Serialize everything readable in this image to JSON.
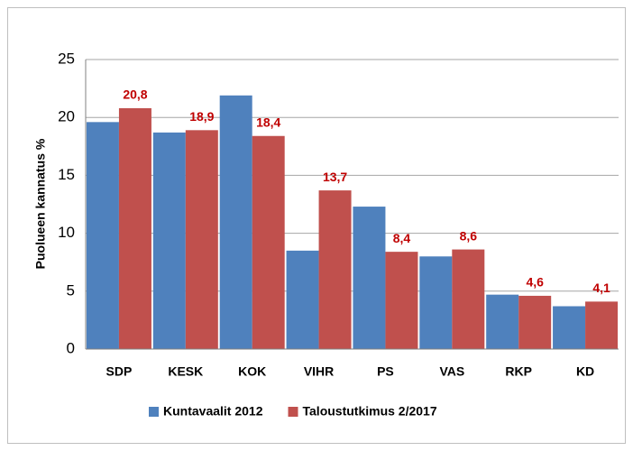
{
  "chart_data": {
    "type": "bar",
    "y_label": "Puolueen kannatus %",
    "categories": [
      "SDP",
      "KESK",
      "KOK",
      "VIHR",
      "PS",
      "VAS",
      "RKP",
      "KD"
    ],
    "series": [
      {
        "name": "Kuntavaalit 2012",
        "color": "#4f81bd",
        "values": [
          19.6,
          18.7,
          21.9,
          8.5,
          12.3,
          8.0,
          4.7,
          3.7
        ]
      },
      {
        "name": "Taloustutkimus 2/2017",
        "color": "#c0504d",
        "values": [
          20.8,
          18.9,
          18.4,
          13.7,
          8.4,
          8.6,
          4.6,
          4.1
        ],
        "value_labels": [
          "20,8",
          "18,9",
          "18,4",
          "13,7",
          "8,4",
          "8,6",
          "4,6",
          "4,1"
        ]
      }
    ],
    "ylim": [
      0,
      25
    ],
    "yticks": [
      0,
      5,
      10,
      15,
      20,
      25
    ],
    "grid": true,
    "legend": "bottom"
  }
}
